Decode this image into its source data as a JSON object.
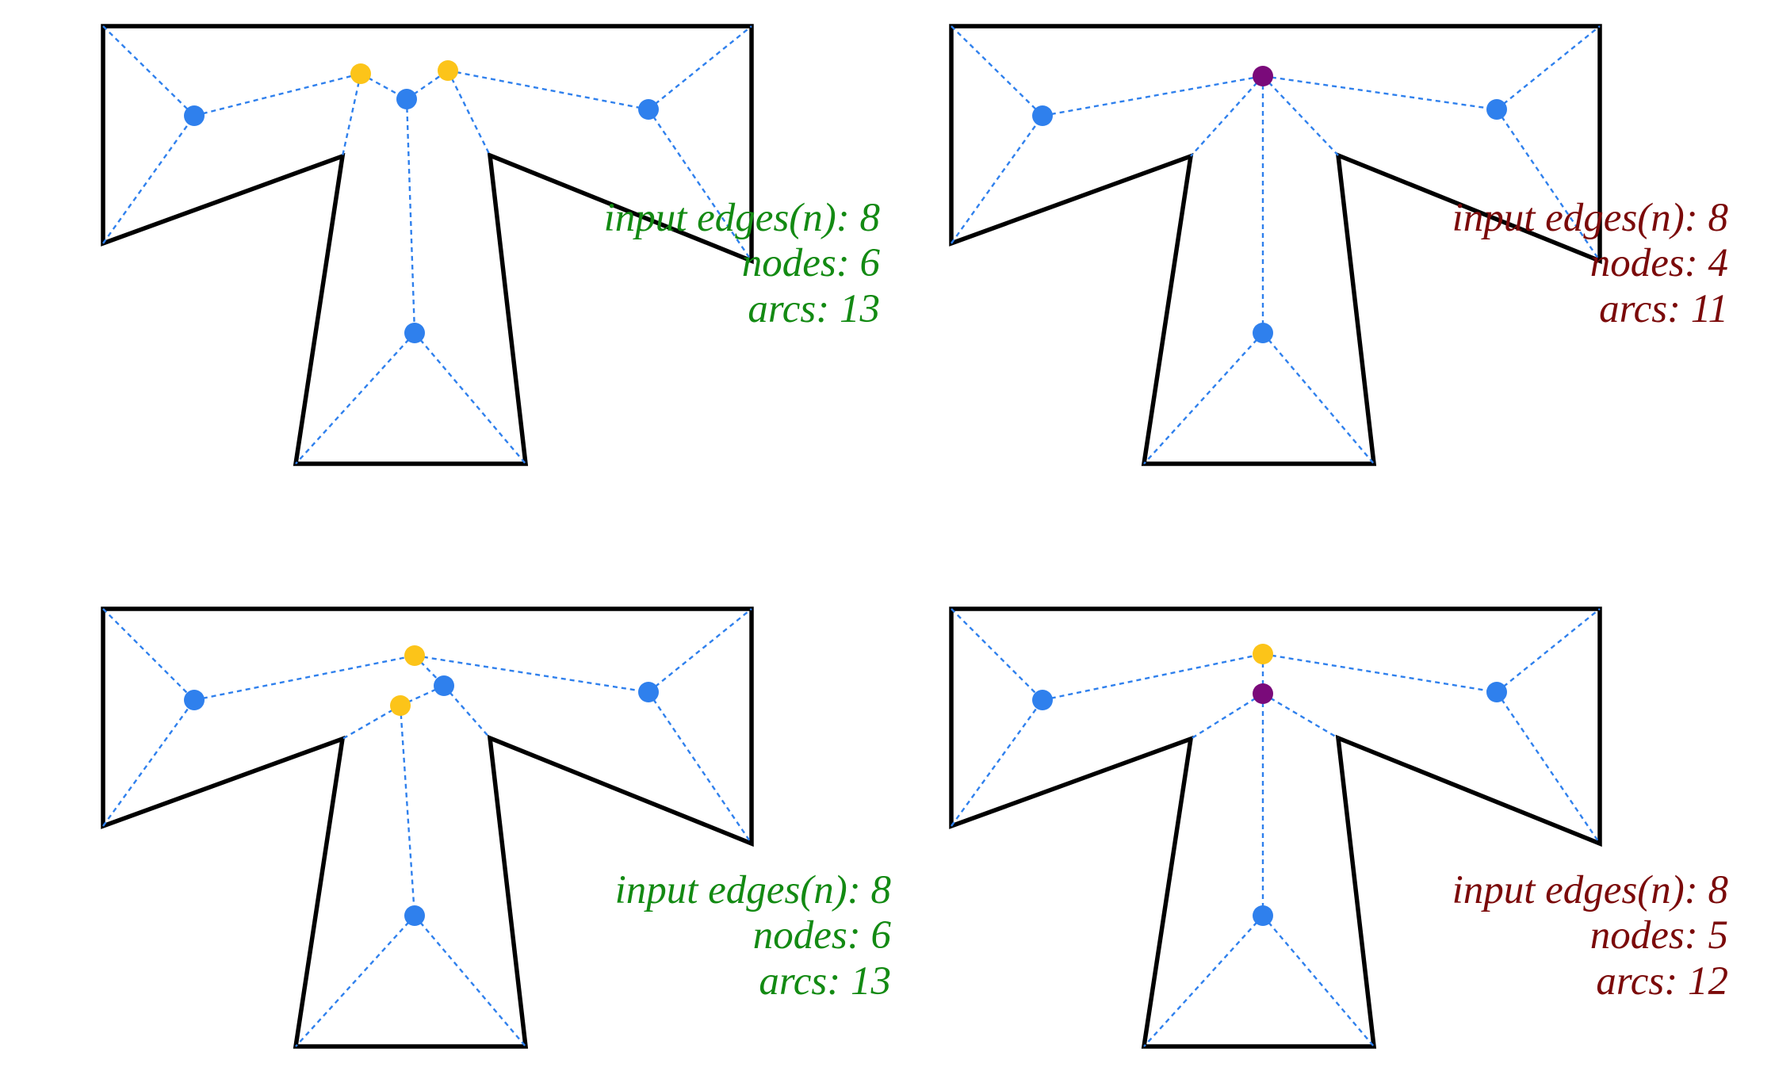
{
  "colors": {
    "outline": "#000000",
    "arc": "#2f80ed",
    "node_blue": "#2f80ed",
    "node_yellow": "#fcc419",
    "node_purple": "#7a0a7a",
    "caption_green": "#138a13",
    "caption_red": "#7b0a0a"
  },
  "panels": [
    {
      "id": "top-left",
      "caption_color": "caption_green",
      "caption": {
        "edges": "input edges(n): 8",
        "nodes": "nodes: 6",
        "arcs": "arcs: 13"
      },
      "nodes": [
        {
          "id": "left-wing",
          "color": "node_blue"
        },
        {
          "id": "right-wing",
          "color": "node_blue"
        },
        {
          "id": "stem-low",
          "color": "node_blue"
        },
        {
          "id": "stem-high",
          "color": "node_blue"
        },
        {
          "id": "junction-left",
          "color": "node_yellow"
        },
        {
          "id": "junction-right",
          "color": "node_yellow"
        }
      ]
    },
    {
      "id": "top-right",
      "caption_color": "caption_red",
      "caption": {
        "edges": "input edges(n): 8",
        "nodes": "nodes: 4",
        "arcs": "arcs: 11"
      },
      "nodes": [
        {
          "id": "left-wing",
          "color": "node_blue"
        },
        {
          "id": "right-wing",
          "color": "node_blue"
        },
        {
          "id": "stem-low",
          "color": "node_blue"
        },
        {
          "id": "center",
          "color": "node_purple"
        }
      ]
    },
    {
      "id": "bottom-left",
      "caption_color": "caption_green",
      "caption": {
        "edges": "input edges(n): 8",
        "nodes": "nodes: 6",
        "arcs": "arcs: 13"
      },
      "nodes": [
        {
          "id": "left-wing",
          "color": "node_blue"
        },
        {
          "id": "right-wing",
          "color": "node_blue"
        },
        {
          "id": "stem-low",
          "color": "node_blue"
        },
        {
          "id": "mid-right",
          "color": "node_blue"
        },
        {
          "id": "junction-top",
          "color": "node_yellow"
        },
        {
          "id": "junction-low",
          "color": "node_yellow"
        }
      ]
    },
    {
      "id": "bottom-right",
      "caption_color": "caption_red",
      "caption": {
        "edges": "input edges(n): 8",
        "nodes": "nodes: 5",
        "arcs": "arcs: 12"
      },
      "nodes": [
        {
          "id": "left-wing",
          "color": "node_blue"
        },
        {
          "id": "right-wing",
          "color": "node_blue"
        },
        {
          "id": "stem-low",
          "color": "node_blue"
        },
        {
          "id": "junction-top",
          "color": "node_yellow"
        },
        {
          "id": "center",
          "color": "node_purple"
        }
      ]
    }
  ]
}
